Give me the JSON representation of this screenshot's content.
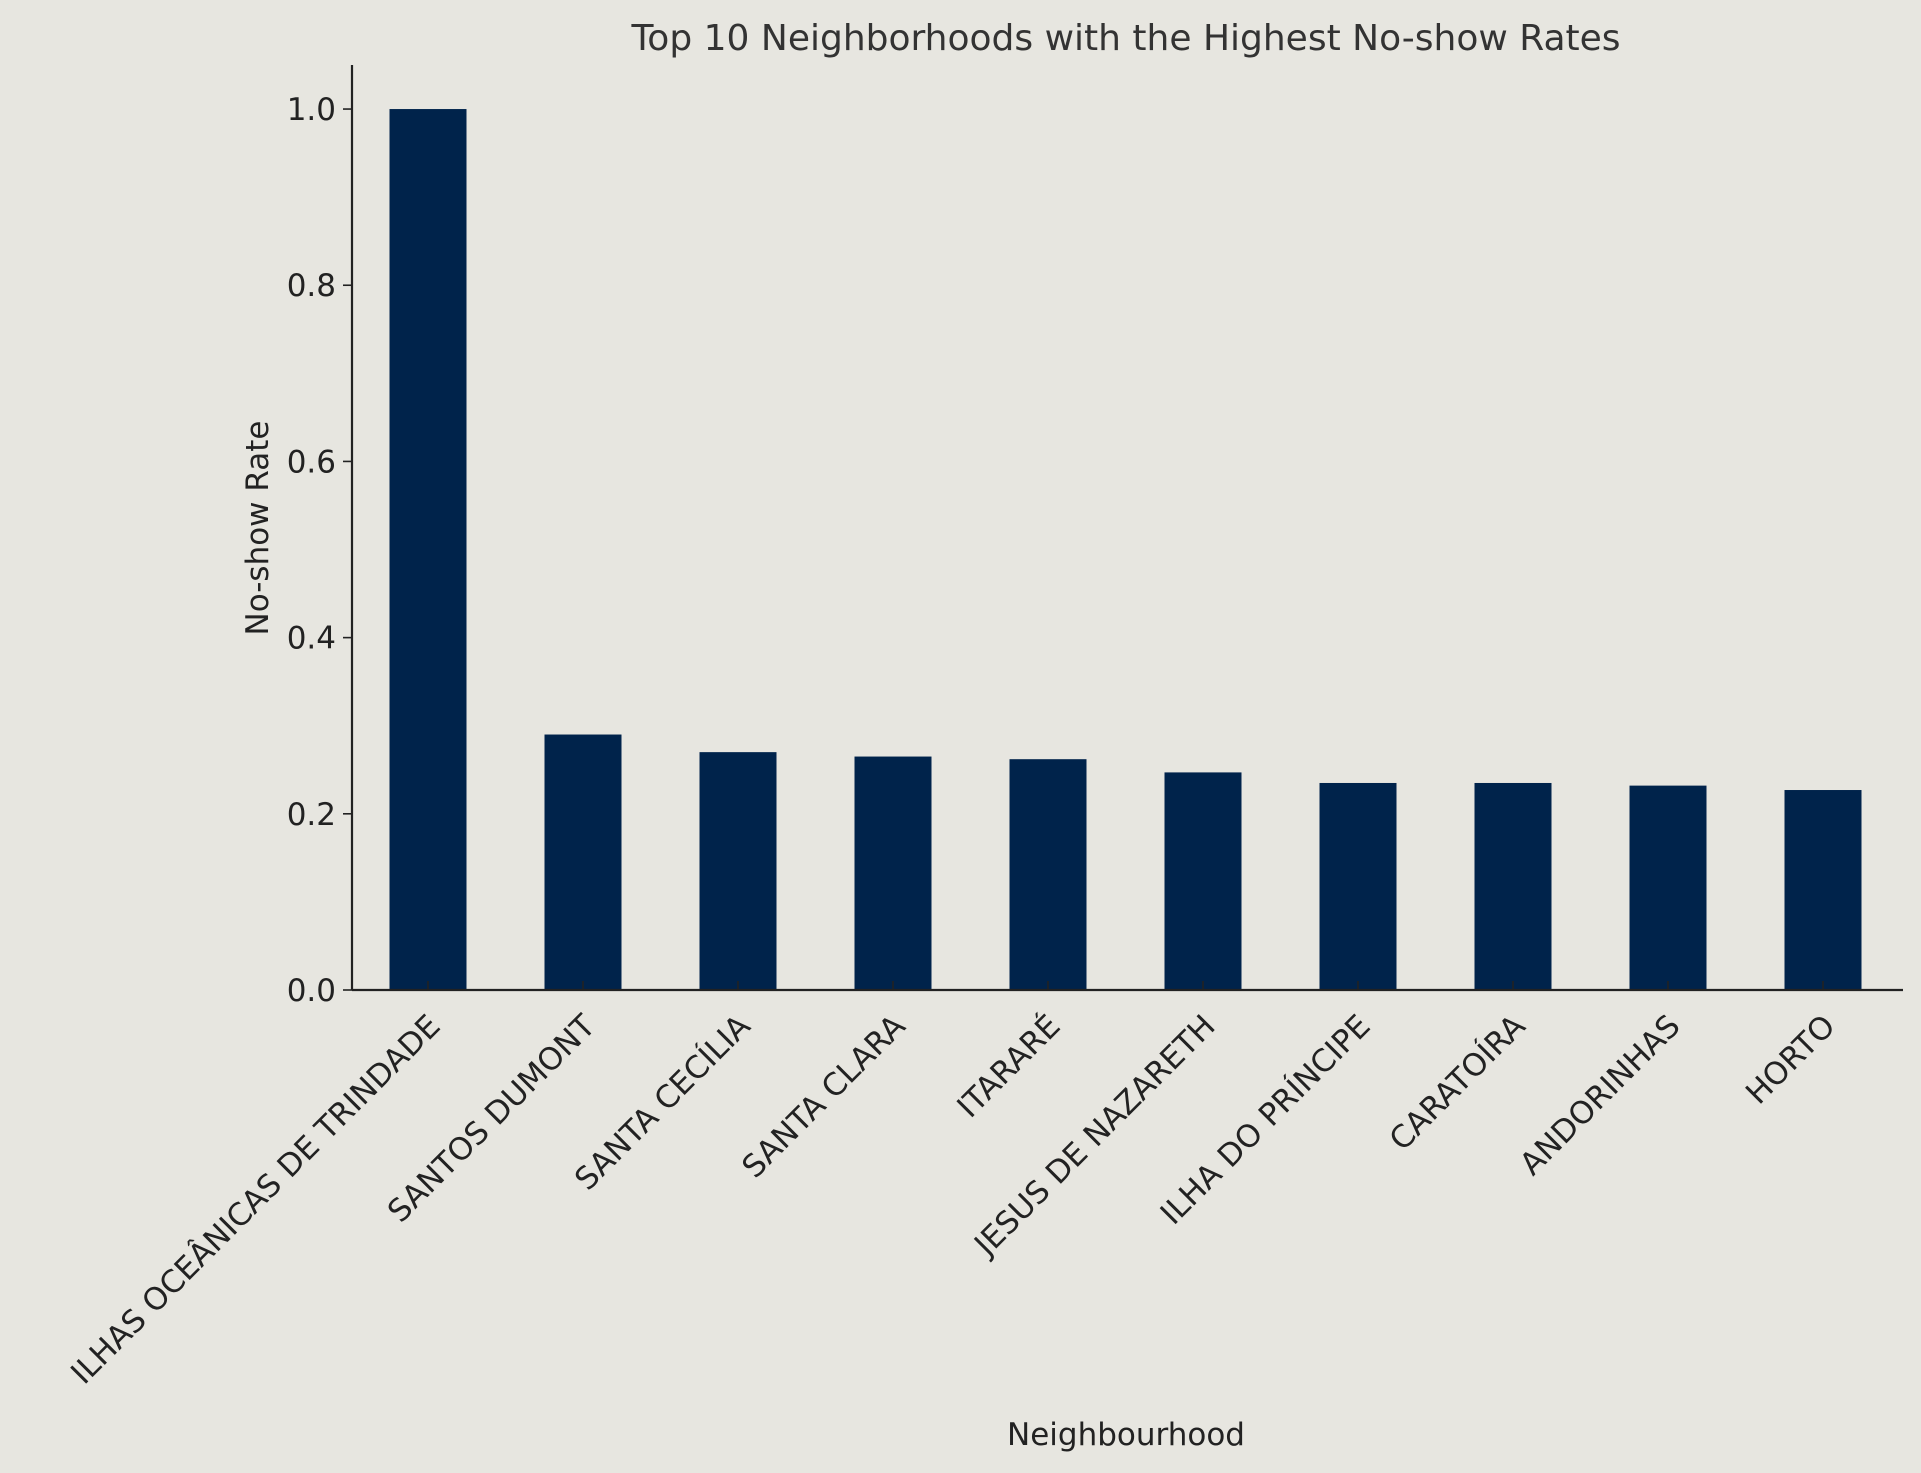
{
  "chart_data": {
    "type": "bar",
    "title": "Top 10 Neighborhoods with the Highest No-show Rates",
    "xlabel": "Neighbourhood",
    "ylabel": "No-show Rate",
    "categories": [
      "ILHAS OCEÂNICAS DE TRINDADE",
      "SANTOS DUMONT",
      "SANTA CECÍLIA",
      "SANTA CLARA",
      "ITARARÉ",
      "JESUS DE NAZARETH",
      "ILHA DO PRÍNCIPE",
      "CARATOÍRA",
      "ANDORINHAS",
      "HORTO"
    ],
    "values": [
      1.0,
      0.29,
      0.27,
      0.265,
      0.262,
      0.247,
      0.235,
      0.235,
      0.232,
      0.227
    ],
    "ylim": [
      0,
      1.05
    ],
    "yticks": [
      "0.0",
      "0.2",
      "0.4",
      "0.6",
      "0.8",
      "1.0"
    ],
    "grid": false,
    "bar_color": "#00234b",
    "background_color": "#e7e6e0"
  }
}
